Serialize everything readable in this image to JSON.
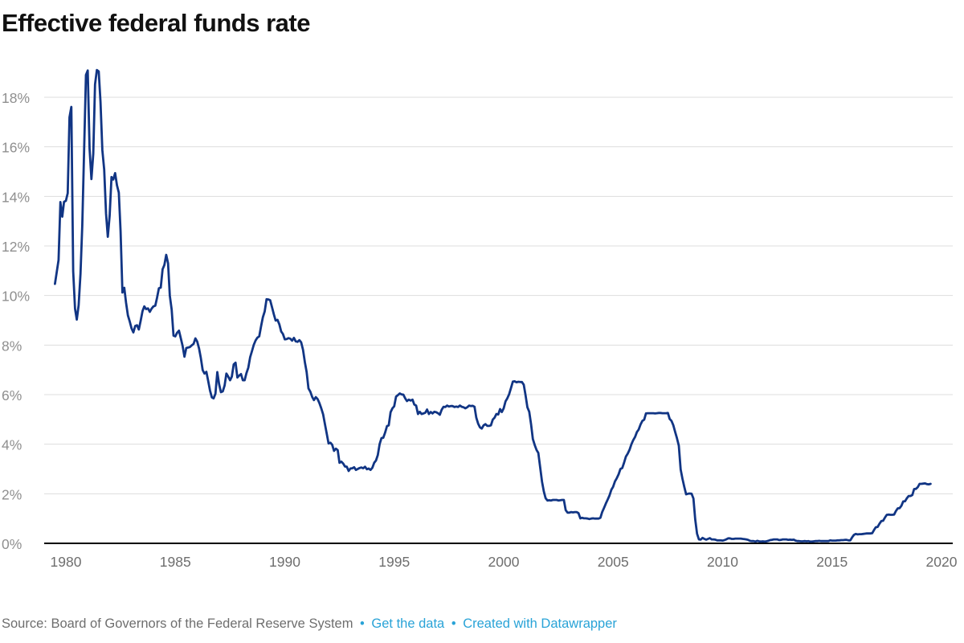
{
  "header": {
    "title": "Effective federal funds rate"
  },
  "footer": {
    "source_text": "Source: Board of Governors of the Federal Reserve System",
    "separator": "•",
    "links": [
      {
        "label": "Get the data"
      },
      {
        "label": "Created with Datawrapper"
      }
    ],
    "link_color": "#29a3d7",
    "source_color": "#6e6e6e"
  },
  "chart_data": {
    "type": "line",
    "title": "Effective federal funds rate",
    "series_name": "Effective federal funds rate (%, monthly)",
    "x_unit": "year (monthly observations)",
    "x_start": 1979.5,
    "x_step": 0.0833333333,
    "xlim": [
      1979.0,
      2020.5
    ],
    "ylim": [
      0,
      19.5
    ],
    "x_ticks": [
      1980,
      1985,
      1990,
      1995,
      2000,
      2005,
      2010,
      2015,
      2020
    ],
    "y_ticks": [
      0,
      2,
      4,
      6,
      8,
      10,
      12,
      14,
      16,
      18
    ],
    "y_tick_suffix": "%",
    "grid": "horizontal",
    "legend": "none",
    "line_color": "#113584",
    "grid_color": "#dddddd",
    "baseline_color": "#000000",
    "y_tick_label_color": "#8f8f8f",
    "x_tick_label_color": "#6e6e6e",
    "values": [
      10.47,
      10.94,
      11.43,
      13.77,
      13.18,
      13.78,
      13.82,
      14.13,
      17.19,
      17.61,
      10.98,
      9.47,
      9.03,
      9.61,
      10.87,
      12.81,
      15.85,
      18.9,
      19.08,
      15.93,
      14.7,
      15.72,
      18.52,
      19.1,
      19.04,
      17.82,
      15.87,
      15.08,
      13.31,
      12.37,
      13.22,
      14.78,
      14.68,
      14.94,
      14.45,
      14.15,
      12.59,
      10.12,
      10.31,
      9.71,
      9.2,
      8.95,
      8.68,
      8.51,
      8.77,
      8.8,
      8.63,
      8.98,
      9.37,
      9.56,
      9.45,
      9.48,
      9.34,
      9.47,
      9.56,
      9.59,
      9.91,
      10.29,
      10.32,
      11.06,
      11.23,
      11.64,
      11.3,
      9.99,
      9.43,
      8.38,
      8.35,
      8.5,
      8.58,
      8.27,
      7.97,
      7.53,
      7.88,
      7.9,
      7.92,
      7.99,
      8.05,
      8.27,
      8.14,
      7.86,
      7.48,
      6.99,
      6.85,
      6.92,
      6.56,
      6.17,
      5.89,
      5.85,
      6.04,
      6.91,
      6.43,
      6.1,
      6.13,
      6.37,
      6.85,
      6.73,
      6.58,
      6.73,
      7.22,
      7.29,
      6.69,
      6.77,
      6.83,
      6.58,
      6.58,
      6.87,
      7.09,
      7.51,
      7.75,
      8.01,
      8.19,
      8.3,
      8.35,
      8.76,
      9.12,
      9.36,
      9.85,
      9.84,
      9.81,
      9.53,
      9.24,
      8.99,
      9.02,
      8.84,
      8.55,
      8.45,
      8.23,
      8.24,
      8.28,
      8.26,
      8.18,
      8.29,
      8.15,
      8.13,
      8.2,
      8.11,
      7.81,
      7.31,
      6.91,
      6.25,
      6.12,
      5.91,
      5.78,
      5.9,
      5.82,
      5.66,
      5.45,
      5.21,
      4.81,
      4.43,
      4.03,
      4.06,
      3.98,
      3.73,
      3.82,
      3.76,
      3.25,
      3.3,
      3.22,
      3.1,
      3.09,
      2.92,
      3.02,
      3.03,
      3.07,
      2.96,
      3.0,
      3.04,
      3.06,
      3.03,
      3.09,
      2.99,
      3.02,
      2.96,
      3.05,
      3.25,
      3.34,
      3.56,
      4.01,
      4.25,
      4.26,
      4.47,
      4.73,
      4.76,
      5.29,
      5.45,
      5.53,
      5.92,
      5.98,
      6.05,
      6.01,
      6.0,
      5.85,
      5.74,
      5.8,
      5.76,
      5.8,
      5.6,
      5.56,
      5.22,
      5.31,
      5.22,
      5.24,
      5.27,
      5.4,
      5.22,
      5.3,
      5.24,
      5.31,
      5.29,
      5.25,
      5.19,
      5.39,
      5.51,
      5.5,
      5.56,
      5.52,
      5.54,
      5.54,
      5.5,
      5.52,
      5.5,
      5.56,
      5.51,
      5.49,
      5.45,
      5.49,
      5.56,
      5.54,
      5.55,
      5.51,
      5.07,
      4.83,
      4.68,
      4.63,
      4.76,
      4.81,
      4.74,
      4.74,
      4.76,
      4.99,
      5.07,
      5.22,
      5.2,
      5.42,
      5.3,
      5.45,
      5.73,
      5.85,
      6.02,
      6.27,
      6.53,
      6.54,
      6.5,
      6.52,
      6.51,
      6.51,
      6.4,
      5.98,
      5.49,
      5.31,
      4.8,
      4.21,
      3.97,
      3.77,
      3.65,
      3.07,
      2.49,
      2.09,
      1.82,
      1.73,
      1.74,
      1.73,
      1.75,
      1.75,
      1.75,
      1.73,
      1.74,
      1.75,
      1.75,
      1.34,
      1.24,
      1.24,
      1.26,
      1.25,
      1.26,
      1.26,
      1.22,
      1.01,
      1.03,
      1.01,
      1.01,
      1.0,
      0.98,
      1.0,
      1.01,
      1.0,
      1.0,
      1.0,
      1.03,
      1.26,
      1.43,
      1.61,
      1.76,
      1.93,
      2.16,
      2.28,
      2.5,
      2.63,
      2.79,
      3.0,
      3.04,
      3.26,
      3.5,
      3.62,
      3.78,
      4.0,
      4.16,
      4.29,
      4.49,
      4.59,
      4.79,
      4.94,
      4.99,
      5.24,
      5.25,
      5.25,
      5.25,
      5.25,
      5.24,
      5.25,
      5.26,
      5.26,
      5.25,
      5.25,
      5.25,
      5.26,
      5.02,
      4.94,
      4.76,
      4.49,
      4.24,
      3.94,
      2.98,
      2.61,
      2.28,
      1.98,
      2.0,
      2.01,
      2.0,
      1.81,
      0.97,
      0.39,
      0.16,
      0.15,
      0.22,
      0.18,
      0.15,
      0.18,
      0.21,
      0.16,
      0.16,
      0.15,
      0.12,
      0.12,
      0.12,
      0.11,
      0.13,
      0.16,
      0.2,
      0.2,
      0.18,
      0.18,
      0.19,
      0.19,
      0.19,
      0.19,
      0.18,
      0.17,
      0.16,
      0.14,
      0.1,
      0.09,
      0.09,
      0.07,
      0.1,
      0.08,
      0.07,
      0.08,
      0.07,
      0.08,
      0.1,
      0.13,
      0.14,
      0.16,
      0.16,
      0.16,
      0.13,
      0.14,
      0.16,
      0.16,
      0.16,
      0.14,
      0.15,
      0.14,
      0.15,
      0.11,
      0.09,
      0.09,
      0.08,
      0.08,
      0.09,
      0.08,
      0.09,
      0.07,
      0.07,
      0.08,
      0.09,
      0.09,
      0.1,
      0.09,
      0.09,
      0.09,
      0.09,
      0.09,
      0.12,
      0.11,
      0.11,
      0.11,
      0.12,
      0.12,
      0.13,
      0.13,
      0.14,
      0.14,
      0.12,
      0.12,
      0.24,
      0.34,
      0.38,
      0.36,
      0.37,
      0.37,
      0.38,
      0.39,
      0.4,
      0.4,
      0.4,
      0.41,
      0.54,
      0.65,
      0.66,
      0.79,
      0.9,
      0.91,
      1.04,
      1.15,
      1.16,
      1.15,
      1.15,
      1.16,
      1.3,
      1.41,
      1.42,
      1.51,
      1.69,
      1.7,
      1.82,
      1.91,
      1.91,
      1.95,
      2.19,
      2.2,
      2.27,
      2.4,
      2.4,
      2.41,
      2.42,
      2.39,
      2.38,
      2.4
    ]
  }
}
